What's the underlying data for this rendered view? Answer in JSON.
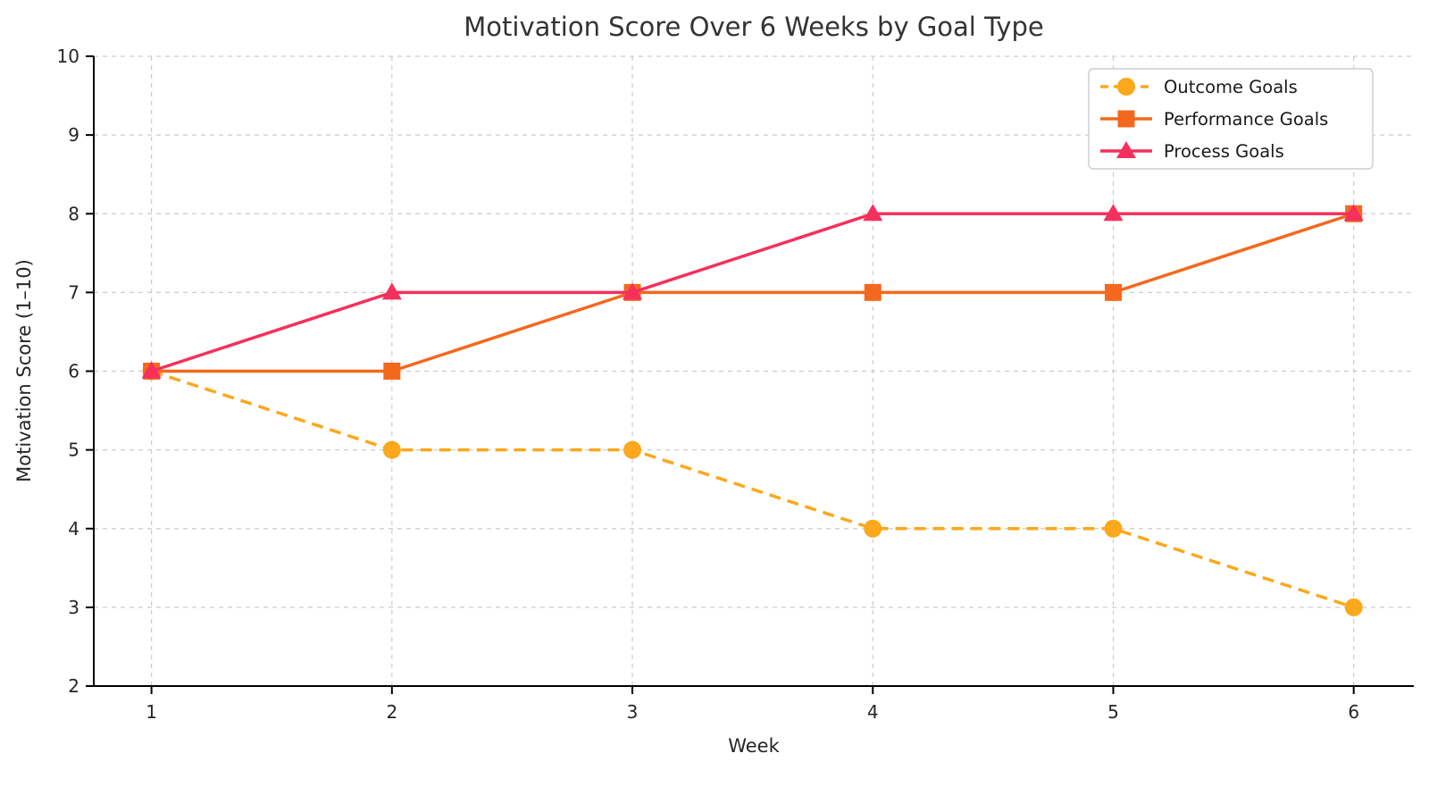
{
  "chart_data": {
    "type": "line",
    "title": "Motivation Score Over 6 Weeks by Goal Type",
    "xlabel": "Week",
    "ylabel": "Motivation Score (1–10)",
    "x": [
      1,
      2,
      3,
      4,
      5,
      6
    ],
    "xticks": [
      1,
      2,
      3,
      4,
      5,
      6
    ],
    "yticks": [
      2,
      3,
      4,
      5,
      6,
      7,
      8,
      9,
      10
    ],
    "xlim": [
      0.76,
      6.25
    ],
    "ylim": [
      2,
      10
    ],
    "grid": true,
    "legend_position": "upper right",
    "series": [
      {
        "name": "Outcome Goals",
        "values": [
          6,
          5,
          5,
          4,
          4,
          3
        ],
        "color": "#FBA81C",
        "marker": "circle",
        "line_style": "dashed"
      },
      {
        "name": "Performance Goals",
        "values": [
          6,
          6,
          7,
          7,
          7,
          8
        ],
        "color": "#F4681D",
        "marker": "square",
        "line_style": "solid"
      },
      {
        "name": "Process Goals",
        "values": [
          6,
          7,
          7,
          8,
          8,
          8
        ],
        "color": "#F5305C",
        "marker": "triangle",
        "line_style": "solid"
      }
    ],
    "style": {
      "grid_color": "#cccccc",
      "spine_color": "#000000",
      "tick_label_color": "#262626",
      "title_color": "#333333",
      "legend_border_color": "#cccccc",
      "legend_bg_color": "#ffffff"
    }
  }
}
